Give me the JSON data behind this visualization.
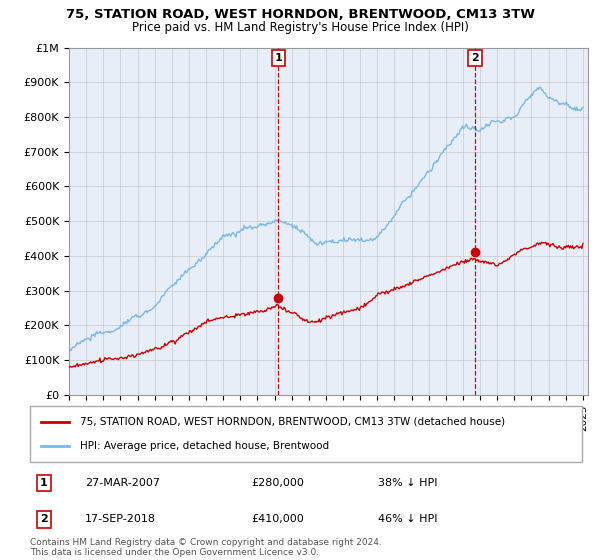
{
  "title1": "75, STATION ROAD, WEST HORNDON, BRENTWOOD, CM13 3TW",
  "title2": "Price paid vs. HM Land Registry's House Price Index (HPI)",
  "legend_line1": "75, STATION ROAD, WEST HORNDON, BRENTWOOD, CM13 3TW (detached house)",
  "legend_line2": "HPI: Average price, detached house, Brentwood",
  "marker1_label": "1",
  "marker1_date": "27-MAR-2007",
  "marker1_price": "£280,000",
  "marker1_hpi": "38% ↓ HPI",
  "marker1_year": 2007.23,
  "marker2_label": "2",
  "marker2_date": "17-SEP-2018",
  "marker2_price": "£410,000",
  "marker2_hpi": "46% ↓ HPI",
  "marker2_year": 2018.71,
  "hpi_color": "#7ab8e8",
  "price_color": "#cc0000",
  "marker_color": "#cc0000",
  "bg_color": "#e8eef8",
  "grid_color": "#c8c8c8",
  "footnote": "Contains HM Land Registry data © Crown copyright and database right 2024.\nThis data is licensed under the Open Government Licence v3.0.",
  "ylim": [
    0,
    1000000
  ],
  "xlim_start": 1995,
  "xlim_end": 2025.3
}
